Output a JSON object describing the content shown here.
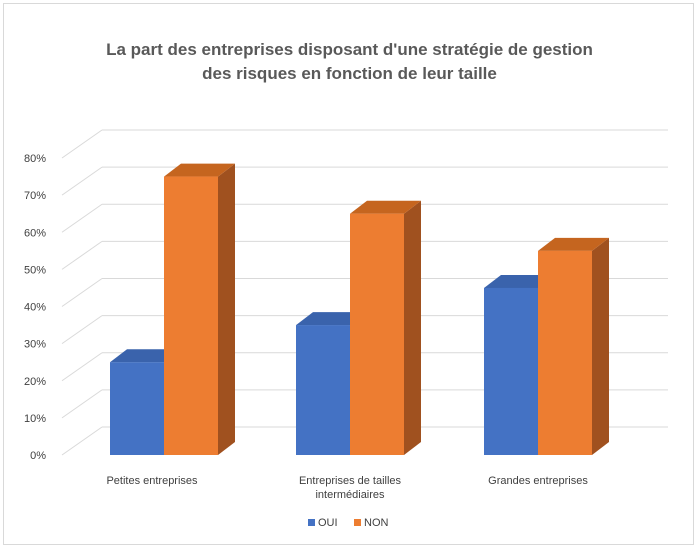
{
  "chart_data": {
    "type": "bar",
    "variant": "3d-clustered-column",
    "title_lines": [
      "La part des entreprises disposant d'une stratégie de gestion",
      "des risques en fonction de leur taille"
    ],
    "categories": [
      [
        "Petites entreprises"
      ],
      [
        "Entreprises de tailles",
        "intermédiaires"
      ],
      [
        "Grandes entreprises"
      ]
    ],
    "series": [
      {
        "name": "OUI",
        "values": [
          25,
          35,
          45
        ],
        "color": "#4472C4",
        "side_color": "#2F5597",
        "top_color": "#3A63AC"
      },
      {
        "name": "NON",
        "values": [
          75,
          65,
          55
        ],
        "color": "#ED7D31",
        "side_color": "#A0511F",
        "top_color": "#C5651F"
      }
    ],
    "y_ticks": [
      "0%",
      "10%",
      "20%",
      "30%",
      "40%",
      "50%",
      "60%",
      "70%",
      "80%"
    ],
    "ylim": [
      0,
      80
    ],
    "grid": true,
    "legend_position": "bottom"
  }
}
